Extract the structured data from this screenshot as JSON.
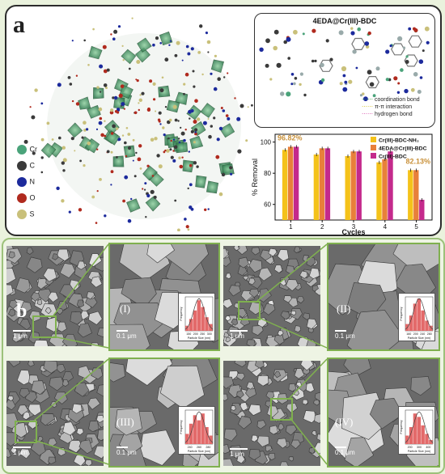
{
  "panel_a": {
    "letter": "a",
    "legend": [
      {
        "symbol": "Cr",
        "color": "#4aa37a"
      },
      {
        "symbol": "C",
        "color": "#3a3a3a"
      },
      {
        "symbol": "N",
        "color": "#1c2a9c"
      },
      {
        "symbol": "O",
        "color": "#b02a1e"
      },
      {
        "symbol": "S",
        "color": "#c9c07a"
      }
    ],
    "structure_title": "4EDA@Cr(III)-BDC",
    "structure_legend": [
      "coordination bond",
      "π-π interaction",
      "hydrogen bond"
    ],
    "structure_legend_colors": [
      "#2e9c3a",
      "#d4c21c",
      "#d64aa8"
    ]
  },
  "chart_data": {
    "type": "bar",
    "categories": [
      "1",
      "2",
      "3",
      "4",
      "5"
    ],
    "xlabel": "Cycles",
    "ylabel": "% Removal",
    "ylim": [
      50,
      105
    ],
    "yticks": [
      "60",
      "80",
      "100"
    ],
    "series": [
      {
        "name": "Cr(III)-BDC-NH₂",
        "color": "#f4c21a",
        "values": [
          95,
          92,
          91,
          87,
          82
        ]
      },
      {
        "name": "4EDA@Cr(III)-BDC",
        "color": "#e8803a",
        "values": [
          97,
          96,
          94,
          89,
          82
        ]
      },
      {
        "name": "Cr(III)-BDC",
        "color": "#c42a8c",
        "values": [
          97,
          96,
          94,
          94,
          63
        ]
      }
    ],
    "annotations": [
      "96.82%",
      "82.13%"
    ],
    "annotation_color": "#c9913a"
  },
  "panel_b": {
    "letter": "b",
    "labels": [
      "(I)",
      "(II)",
      "(III)",
      "(IV)"
    ],
    "scale_big": "1 μm",
    "scale_small": "0.1 μm",
    "hist_xlabel": "Particle Size (nm)",
    "hist_ylabel": "Frequency",
    "hist_ticks": [
      [
        "150",
        "200",
        "250",
        "300"
      ],
      [
        "160",
        "200",
        "240",
        "280"
      ],
      [
        "240",
        "260",
        "280"
      ],
      [
        "200",
        "300",
        "400"
      ]
    ]
  }
}
